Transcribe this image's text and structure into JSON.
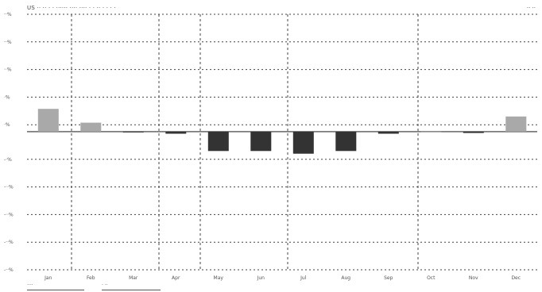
{
  "header": {
    "title": "US ·· ·· · · ······ ···· ···· · · ·· · · · ·",
    "unit": "·· ··"
  },
  "chart_data": {
    "type": "bar",
    "title": "",
    "xlabel": "",
    "ylabel": "",
    "categories": [
      "Jan",
      "Feb",
      "Mar",
      "Apr",
      "May",
      "Jun",
      "Jul",
      "Aug",
      "Sep",
      "Oct",
      "Nov",
      "Dec"
    ],
    "values": [
      3.3,
      1.3,
      -0.1,
      -0.3,
      -2.8,
      -2.8,
      -3.2,
      -2.8,
      -0.3,
      0.0,
      -0.2,
      2.2
    ],
    "ylim": [
      -20,
      17
    ],
    "yticks": [
      17,
      13,
      9,
      5,
      1,
      -4,
      -8,
      -12,
      -16,
      -20
    ],
    "ytick_labels": [
      "··%",
      "··%",
      "··%",
      "·%",
      "·%",
      "-·%",
      "-··%",
      "-··%",
      "-··%",
      "-··%"
    ],
    "grid": true,
    "colors": {
      "positive": "#a9a9a9",
      "negative": "#333333",
      "grid": "#444444"
    },
    "legend": {
      "placement": "bottom-left",
      "entries": [
        "····",
        "· ··"
      ]
    }
  }
}
